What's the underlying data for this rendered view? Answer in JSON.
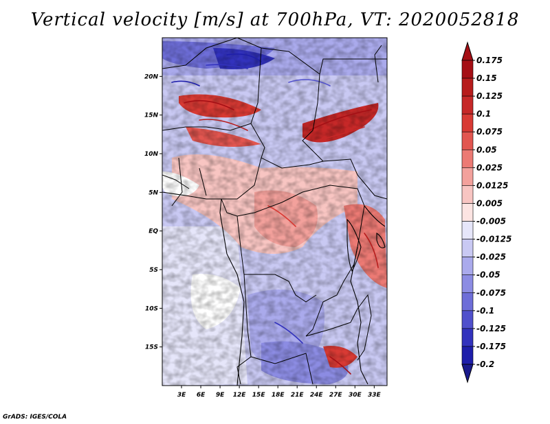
{
  "title": "Vertical velocity [m/s] at 700hPa, VT: 2020052818",
  "credit": "GrADS: IGES/COLA",
  "map": {
    "lon_range": [
      0,
      35
    ],
    "lat_range": [
      -20,
      25
    ],
    "lat_ticks": [
      {
        "value": 20,
        "label": "20N"
      },
      {
        "value": 15,
        "label": "15N"
      },
      {
        "value": 10,
        "label": "10N"
      },
      {
        "value": 5,
        "label": "5N"
      },
      {
        "value": 0,
        "label": "EQ"
      },
      {
        "value": -5,
        "label": "5S"
      },
      {
        "value": -10,
        "label": "10S"
      },
      {
        "value": -15,
        "label": "15S"
      }
    ],
    "lon_ticks": [
      {
        "value": 3,
        "label": "3E"
      },
      {
        "value": 6,
        "label": "6E"
      },
      {
        "value": 9,
        "label": "9E"
      },
      {
        "value": 12,
        "label": "12E"
      },
      {
        "value": 15,
        "label": "15E"
      },
      {
        "value": 18,
        "label": "18E"
      },
      {
        "value": 21,
        "label": "21E"
      },
      {
        "value": 24,
        "label": "24E"
      },
      {
        "value": 27,
        "label": "27E"
      },
      {
        "value": 30,
        "label": "30E"
      },
      {
        "value": 33,
        "label": "33E"
      }
    ]
  },
  "colorbar": {
    "levels": [
      {
        "label": "0.175",
        "color": "#a50f15"
      },
      {
        "label": "0.15",
        "color": "#b71c1c"
      },
      {
        "label": "0.125",
        "color": "#c62828"
      },
      {
        "label": "0.1",
        "color": "#d83a34"
      },
      {
        "label": "0.075",
        "color": "#e25650"
      },
      {
        "label": "0.05",
        "color": "#ec7a74"
      },
      {
        "label": "0.025",
        "color": "#f3a19c"
      },
      {
        "label": "0.0125",
        "color": "#f8c5c2"
      },
      {
        "label": "0.005",
        "color": "#fce4e2"
      },
      {
        "label": "-0.005",
        "color": "#ffffff"
      },
      {
        "label": "-0.0125",
        "color": "#e6e6fa"
      },
      {
        "label": "-0.025",
        "color": "#c9c9f3"
      },
      {
        "label": "-0.05",
        "color": "#aaaaec"
      },
      {
        "label": "-0.075",
        "color": "#8c8ce3"
      },
      {
        "label": "-0.1",
        "color": "#6e6ed8"
      },
      {
        "label": "-0.125",
        "color": "#5050cc"
      },
      {
        "label": "-0.175",
        "color": "#3232bd"
      },
      {
        "label": "-0.2",
        "color": "#1e1eaa"
      }
    ],
    "top_color": "#a50f15",
    "bottom_color": "#1a1a8c"
  }
}
